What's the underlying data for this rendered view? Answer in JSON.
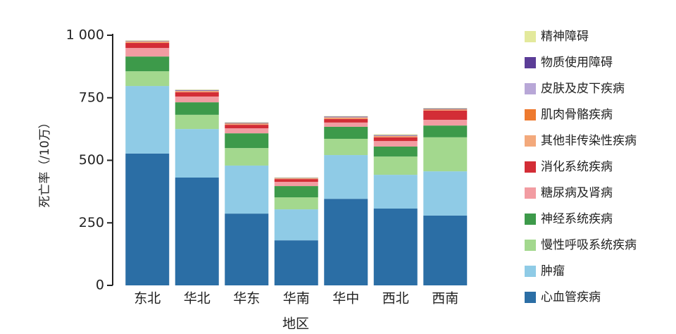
{
  "chart_data": {
    "type": "stacked-bar",
    "y_label": "死亡率（/10万）",
    "x_label": "地区",
    "categories": [
      "东北",
      "华北",
      "华东",
      "华南",
      "华中",
      "西北",
      "西南"
    ],
    "ylim": [
      0,
      1000
    ],
    "yticks": [
      0,
      250,
      500,
      750,
      {
        "value": 1000,
        "label": "1 000"
      }
    ],
    "series": [
      {
        "name": "心血管疾病",
        "color": "#2b6ea5",
        "values": [
          527,
          431,
          287,
          180,
          346,
          307,
          279
        ]
      },
      {
        "name": "肿瘤",
        "color": "#8fcbe6",
        "values": [
          270,
          194,
          192,
          124,
          175,
          135,
          177
        ]
      },
      {
        "name": "慢性呼吸系统疾病",
        "color": "#a3d88e",
        "values": [
          59,
          57,
          70,
          48,
          65,
          73,
          136
        ]
      },
      {
        "name": "神经系统疾病",
        "color": "#3d9a4a",
        "values": [
          59,
          50,
          59,
          45,
          48,
          40,
          47
        ]
      },
      {
        "name": "糖尿病及肾病",
        "color": "#f29ca2",
        "values": [
          34,
          23,
          20,
          17,
          17,
          22,
          23
        ]
      },
      {
        "name": "消化系统疾病",
        "color": "#d32d36",
        "values": [
          20,
          17,
          14,
          11,
          14,
          15,
          37
        ]
      },
      {
        "name": "其他非传染性疾病",
        "color": "#f3a97c",
        "values": [
          4,
          3,
          3,
          2,
          4,
          3,
          3
        ]
      },
      {
        "name": "肌肉骨骼疾病",
        "color": "#ee7a2f",
        "values": [
          2,
          2,
          2,
          1,
          2,
          2,
          2
        ]
      },
      {
        "name": "皮肤及皮下疾病",
        "color": "#b8a7d7",
        "values": [
          2,
          2,
          1,
          1,
          2,
          2,
          1
        ]
      },
      {
        "name": "物质使用障碍",
        "color": "#5b3d97",
        "values": [
          1,
          2,
          2,
          1,
          2,
          2,
          2
        ]
      },
      {
        "name": "精神障碍",
        "color": "#e3e99c",
        "values": [
          2,
          2,
          2,
          2,
          2,
          3,
          2
        ]
      }
    ]
  }
}
